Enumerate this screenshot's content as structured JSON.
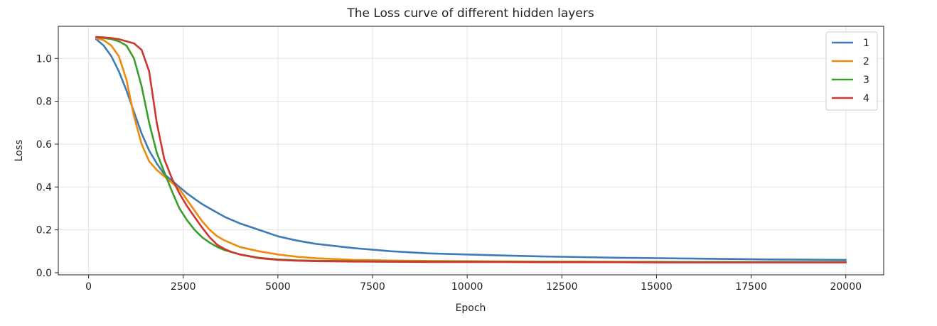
{
  "chart_data": {
    "type": "line",
    "title": "The Loss curve of different hidden layers",
    "xlabel": "Epoch",
    "ylabel": "Loss",
    "xlim": [
      -800,
      21000
    ],
    "ylim": [
      -0.01,
      1.15
    ],
    "xticks": [
      0,
      2500,
      5000,
      7500,
      10000,
      12500,
      15000,
      17500,
      20000
    ],
    "xtick_labels": [
      "0",
      "2500",
      "5000",
      "7500",
      "10000",
      "12500",
      "15000",
      "17500",
      "20000"
    ],
    "yticks": [
      0.0,
      0.2,
      0.4,
      0.6,
      0.8,
      1.0
    ],
    "ytick_labels": [
      "0.0",
      "0.2",
      "0.4",
      "0.6",
      "0.8",
      "1.0"
    ],
    "grid": true,
    "legend_position": "top-right",
    "x": [
      200,
      400,
      600,
      800,
      1000,
      1200,
      1400,
      1600,
      1800,
      2000,
      2200,
      2400,
      2600,
      2800,
      3000,
      3200,
      3400,
      3600,
      3800,
      4000,
      4500,
      5000,
      5500,
      6000,
      7000,
      8000,
      9000,
      10000,
      11000,
      12000,
      13000,
      14000,
      15000,
      16000,
      17000,
      18000,
      19000,
      20000
    ],
    "series": [
      {
        "name": "1",
        "color": "#3d7ab8",
        "values": [
          1.09,
          1.06,
          1.01,
          0.94,
          0.85,
          0.75,
          0.65,
          0.57,
          0.51,
          0.46,
          0.43,
          0.4,
          0.37,
          0.345,
          0.32,
          0.3,
          0.28,
          0.26,
          0.245,
          0.23,
          0.2,
          0.17,
          0.15,
          0.135,
          0.115,
          0.1,
          0.09,
          0.085,
          0.08,
          0.076,
          0.073,
          0.07,
          0.068,
          0.066,
          0.064,
          0.062,
          0.061,
          0.06
        ]
      },
      {
        "name": "2",
        "color": "#f08a0c",
        "values": [
          1.095,
          1.085,
          1.06,
          1.01,
          0.9,
          0.73,
          0.6,
          0.52,
          0.48,
          0.45,
          0.42,
          0.39,
          0.34,
          0.29,
          0.24,
          0.2,
          0.17,
          0.15,
          0.135,
          0.12,
          0.1,
          0.085,
          0.075,
          0.068,
          0.06,
          0.057,
          0.055,
          0.054,
          0.053,
          0.052,
          0.052,
          0.051,
          0.051,
          0.05,
          0.05,
          0.05,
          0.05,
          0.05
        ]
      },
      {
        "name": "3",
        "color": "#3a9e2a",
        "values": [
          1.1,
          1.095,
          1.09,
          1.08,
          1.06,
          1.0,
          0.87,
          0.7,
          0.56,
          0.47,
          0.38,
          0.3,
          0.245,
          0.2,
          0.165,
          0.14,
          0.12,
          0.105,
          0.095,
          0.085,
          0.07,
          0.062,
          0.058,
          0.056,
          0.054,
          0.053,
          0.052,
          0.052,
          0.051,
          0.051,
          0.05,
          0.05,
          0.05,
          0.05,
          0.05,
          0.05,
          0.05,
          0.05
        ]
      },
      {
        "name": "4",
        "color": "#d03530",
        "values": [
          1.1,
          1.098,
          1.095,
          1.09,
          1.08,
          1.07,
          1.04,
          0.94,
          0.7,
          0.53,
          0.44,
          0.37,
          0.31,
          0.26,
          0.21,
          0.165,
          0.13,
          0.11,
          0.095,
          0.085,
          0.068,
          0.06,
          0.056,
          0.054,
          0.052,
          0.051,
          0.05,
          0.05,
          0.05,
          0.049,
          0.049,
          0.049,
          0.048,
          0.048,
          0.048,
          0.048,
          0.048,
          0.048
        ]
      }
    ]
  }
}
